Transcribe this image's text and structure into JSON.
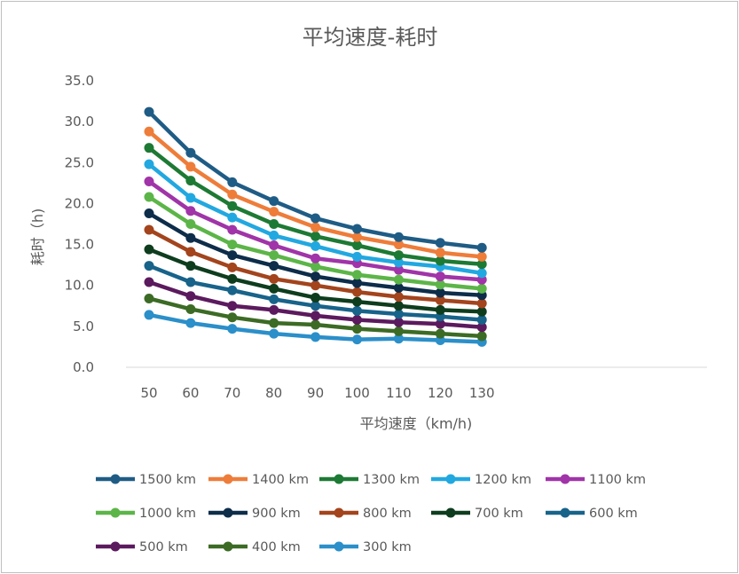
{
  "chart_data": {
    "type": "line",
    "title": "平均速度-耗时",
    "xlabel": "平均速度（km/h)",
    "ylabel": "耗时（h)",
    "x": [
      50,
      60,
      70,
      80,
      90,
      100,
      110,
      120,
      130
    ],
    "x_tick_labels": [
      "50",
      "60",
      "70",
      "80",
      "90",
      "100",
      "110",
      "120",
      "130"
    ],
    "y_tick_labels": [
      "0.0",
      "5.0",
      "10.0",
      "15.0",
      "20.0",
      "25.0",
      "30.0",
      "35.0"
    ],
    "ylim": [
      0,
      35
    ],
    "grid": false,
    "legend_position": "bottom",
    "series": [
      {
        "name": "1500 km",
        "color": "#1f5c85",
        "values": [
          31.2,
          26.2,
          22.6,
          20.3,
          18.2,
          16.9,
          15.9,
          15.2,
          14.6
        ]
      },
      {
        "name": "1400 km",
        "color": "#ee7d3a",
        "values": [
          28.8,
          24.5,
          21.1,
          19.0,
          17.1,
          15.9,
          15.0,
          14.0,
          13.5
        ]
      },
      {
        "name": "1300 km",
        "color": "#1d7a34",
        "values": [
          26.8,
          22.8,
          19.7,
          17.5,
          16.0,
          14.9,
          13.7,
          13.0,
          12.6
        ]
      },
      {
        "name": "1200 km",
        "color": "#22a8e0",
        "values": [
          24.8,
          20.7,
          18.3,
          16.1,
          14.8,
          13.5,
          12.8,
          12.3,
          11.5
        ]
      },
      {
        "name": "1100 km",
        "color": "#a034a8",
        "values": [
          22.7,
          19.1,
          16.8,
          14.9,
          13.3,
          12.7,
          11.9,
          11.1,
          10.7
        ]
      },
      {
        "name": "1000 km",
        "color": "#5cb548",
        "values": [
          20.8,
          17.5,
          15.0,
          13.7,
          12.3,
          11.3,
          10.7,
          10.1,
          9.6
        ]
      },
      {
        "name": "900 km",
        "color": "#0d2d4a",
        "values": [
          18.8,
          15.8,
          13.7,
          12.4,
          11.1,
          10.3,
          9.7,
          9.1,
          8.8
        ]
      },
      {
        "name": "800 km",
        "color": "#a3441d",
        "values": [
          16.8,
          14.1,
          12.2,
          10.8,
          10.0,
          9.2,
          8.6,
          8.2,
          7.8
        ]
      },
      {
        "name": "700 km",
        "color": "#0e3d1e",
        "values": [
          14.4,
          12.4,
          10.8,
          9.6,
          8.5,
          8.0,
          7.5,
          7.0,
          6.8
        ]
      },
      {
        "name": "600 km",
        "color": "#18638a",
        "values": [
          12.4,
          10.4,
          9.4,
          8.3,
          7.5,
          6.9,
          6.5,
          6.2,
          5.8
        ]
      },
      {
        "name": "500 km",
        "color": "#5c1a5e",
        "values": [
          10.4,
          8.7,
          7.5,
          7.0,
          6.3,
          5.8,
          5.5,
          5.3,
          4.9
        ]
      },
      {
        "name": "400 km",
        "color": "#3c6b25",
        "values": [
          8.4,
          7.1,
          6.1,
          5.4,
          5.2,
          4.7,
          4.4,
          4.1,
          3.8
        ]
      },
      {
        "name": "300 km",
        "color": "#2b8fc9",
        "values": [
          6.4,
          5.4,
          4.7,
          4.1,
          3.7,
          3.4,
          3.5,
          3.3,
          3.1
        ]
      }
    ]
  }
}
